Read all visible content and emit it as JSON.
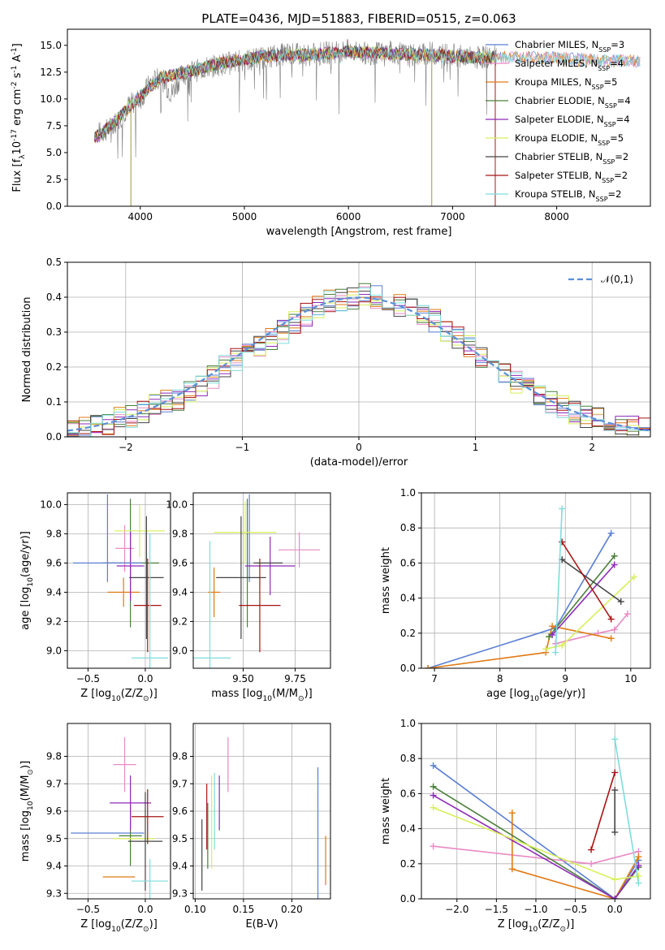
{
  "colors": {
    "Chabrier MILES": "#5b7fd4",
    "Salpeter MILES": "#e88ac4",
    "Kroupa MILES": "#e07b16",
    "Chabrier ELODIE": "#4a7f3a",
    "Salpeter ELODIE": "#8e2ab8",
    "Kroupa ELODIE": "#d8ef5a",
    "Chabrier STELIB": "#444444",
    "Salpeter STELIB": "#a81414",
    "Kroupa STELIB": "#7fdcdc",
    "normal_curve": "#5b8fd8",
    "spectrum": "#808080"
  },
  "chart_data": [
    {
      "type": "line",
      "title": "PLATE=0436, MJD=51883, FIBERID=0515, z=0.063",
      "xlabel": "wavelength [Angstrom, rest frame]",
      "ylabel": "Flux [f$_\\lambda$10$^{-17}$ erg cm$^{-2}$ s$^{-1}$ A$^{-1}$]",
      "xlim": [
        3300,
        8900
      ],
      "ylim": [
        0,
        16.5
      ],
      "xticks": [
        "4000",
        "5000",
        "6000",
        "7000",
        "8000"
      ],
      "yticks": [
        "0.0",
        "2.5",
        "5.0",
        "7.5",
        "10.0",
        "12.5",
        "15.0"
      ],
      "grid": false,
      "legend_position": "right",
      "series": [
        {
          "name": "Chabrier MILES, N$_{SSP}$=3"
        },
        {
          "name": "Salpeter MILES, N$_{SSP}$=4"
        },
        {
          "name": "Kroupa MILES, N$_{SSP}$=5"
        },
        {
          "name": "Chabrier ELODIE, N$_{SSP}$=4"
        },
        {
          "name": "Salpeter ELODIE, N$_{SSP}$=4"
        },
        {
          "name": "Kroupa ELODIE, N$_{SSP}$=5"
        },
        {
          "name": "Chabrier STELIB, N$_{SSP}$=2"
        },
        {
          "name": "Salpeter STELIB, N$_{SSP}$=2"
        },
        {
          "name": "Kroupa STELIB, N$_{SSP}$=2"
        }
      ],
      "spectrum_x": [
        3600,
        3700,
        3800,
        3900,
        4000,
        4100,
        4200,
        4300,
        4400,
        4600,
        4800,
        5000,
        5200,
        5400,
        5600,
        5800,
        6000,
        6200,
        6400,
        6600,
        6800,
        7000,
        7200,
        7400
      ],
      "spectrum_y": [
        6.8,
        7.2,
        8.2,
        9.5,
        10.0,
        11.5,
        12.0,
        10.5,
        12.3,
        12.8,
        13.3,
        13.6,
        13.9,
        14.2,
        14.1,
        14.3,
        14.5,
        14.2,
        14.4,
        14.0,
        14.3,
        14.1,
        13.8,
        14.0
      ],
      "model_x": [
        3600,
        3800,
        4000,
        4200,
        4400,
        4800,
        5200,
        5600,
        6000,
        6400,
        6800,
        7200,
        7600,
        8000,
        8400,
        8800
      ],
      "model_y": [
        6.5,
        8.3,
        10.3,
        12.0,
        12.4,
        13.4,
        14.0,
        14.1,
        14.4,
        14.2,
        14.1,
        13.9,
        13.9,
        13.8,
        13.6,
        13.5
      ]
    },
    {
      "type": "line",
      "xlabel": "(data-model)/error",
      "ylabel": "Normed distribution",
      "xlim": [
        -2.5,
        2.5
      ],
      "ylim": [
        0,
        0.5
      ],
      "xticks": [
        "−2",
        "−1",
        "0",
        "1",
        "2"
      ],
      "yticks": [
        "0.0",
        "0.1",
        "0.2",
        "0.3",
        "0.4",
        "0.5"
      ],
      "grid": true,
      "legend_position": "top-right",
      "legend_label": "$\\mathcal{N}(0,1)$",
      "bin_width": 0.1,
      "bin_start": -2.5,
      "histogram": [
        0.02,
        0.03,
        0.03,
        0.04,
        0.05,
        0.06,
        0.07,
        0.09,
        0.1,
        0.11,
        0.13,
        0.15,
        0.17,
        0.2,
        0.22,
        0.24,
        0.26,
        0.28,
        0.3,
        0.33,
        0.35,
        0.37,
        0.39,
        0.39,
        0.4,
        0.41,
        0.4,
        0.39,
        0.38,
        0.37,
        0.35,
        0.33,
        0.3,
        0.28,
        0.26,
        0.23,
        0.21,
        0.19,
        0.16,
        0.14,
        0.12,
        0.1,
        0.09,
        0.07,
        0.06,
        0.05,
        0.04,
        0.03,
        0.03,
        0.02
      ]
    },
    {
      "type": "scatter",
      "xlabel": "Z [log$_{10}$($Z/Z_\\odot$)]",
      "ylabel": "age  [log$_{10}$($age/yr$)]",
      "xlim": [
        -0.68,
        0.22
      ],
      "ylim": [
        8.88,
        10.08
      ],
      "xticks": [
        "−0.5",
        "0.0"
      ],
      "yticks": [
        "9.0",
        "9.2",
        "9.4",
        "9.6",
        "9.8",
        "10.0"
      ],
      "grid": true,
      "points": [
        {
          "label": "Chabrier MILES",
          "x": -0.33,
          "y": 9.77,
          "xerr": 0.0,
          "yerr": 0.3
        },
        {
          "label": "Salpeter MILES",
          "x": -0.18,
          "y": 9.7,
          "xerr": 0.08,
          "yerr": 0.16
        },
        {
          "label": "Kroupa MILES",
          "x": -0.19,
          "y": 9.4,
          "xerr": 0.14,
          "yerr": 0.1
        },
        {
          "label": "Chabrier ELODIE",
          "x": -0.13,
          "y": 9.6,
          "xerr": 0.25,
          "yerr": 0.44
        },
        {
          "label": "Salpeter ELODIE",
          "x": -0.13,
          "y": 9.58,
          "xerr": 0.12,
          "yerr": 0.24
        },
        {
          "label": "Kroupa ELODIE",
          "x": -0.05,
          "y": 9.82,
          "xerr": 0.22,
          "yerr": 0.18
        },
        {
          "label": "Chabrier STELIB",
          "x": 0.01,
          "y": 9.5,
          "xerr": 0.15,
          "yerr": 0.42
        },
        {
          "label": "Salpeter STELIB",
          "x": 0.02,
          "y": 9.31,
          "xerr": 0.12,
          "yerr": 0.32
        },
        {
          "label": "Kroupa STELIB",
          "x": 0.04,
          "y": 8.95,
          "xerr": 0.16,
          "yerr": 0.85
        },
        {
          "label": "Chabrier MILES (2)",
          "x": -0.33,
          "y": 9.6,
          "xerr": 0.3,
          "yerr": 0.0
        }
      ]
    },
    {
      "type": "scatter",
      "xlabel": "mass [log$_{10}$($M/M_\\odot$)]",
      "ylabel": "",
      "xlim": [
        9.26,
        9.92
      ],
      "ylim": [
        8.88,
        10.08
      ],
      "xticks": [
        "9.50",
        "9.75"
      ],
      "yticks": [
        "9.0",
        "9.2",
        "9.4",
        "9.6",
        "9.8",
        "10.0"
      ],
      "grid": true,
      "points": [
        {
          "label": "Chabrier MILES",
          "x": 9.53,
          "y": 9.77,
          "xerr": 0.0,
          "yerr": 0.3
        },
        {
          "label": "Salpeter MILES",
          "x": 9.77,
          "y": 9.69,
          "xerr": 0.1,
          "yerr": 0.12
        },
        {
          "label": "Kroupa MILES",
          "x": 9.36,
          "y": 9.4,
          "xerr": 0.03,
          "yerr": 0.17
        },
        {
          "label": "Chabrier ELODIE",
          "x": 9.52,
          "y": 9.6,
          "xerr": 0.0,
          "yerr": 0.44
        },
        {
          "label": "Salpeter ELODIE",
          "x": 9.63,
          "y": 9.58,
          "xerr": 0.12,
          "yerr": 0.2
        },
        {
          "label": "Kroupa ELODIE",
          "x": 9.51,
          "y": 9.81,
          "xerr": 0.15,
          "yerr": 0.21
        },
        {
          "label": "Chabrier STELIB",
          "x": 9.49,
          "y": 9.5,
          "xerr": 0.12,
          "yerr": 0.42
        },
        {
          "label": "Salpeter STELIB",
          "x": 9.58,
          "y": 9.31,
          "xerr": 0.1,
          "yerr": 0.32
        },
        {
          "label": "Kroupa STELIB",
          "x": 9.34,
          "y": 8.95,
          "xerr": 0.1,
          "yerr": 0.8
        },
        {
          "label": "Chabrier STELIB (2)",
          "x": 9.62,
          "y": 9.6,
          "xerr": 0.07,
          "yerr": 0.0
        }
      ]
    },
    {
      "type": "line",
      "xlabel": "age  [log$_{10}$($age/yr$)]",
      "ylabel": "mass weight",
      "xlim": [
        6.8,
        10.3
      ],
      "ylim": [
        0,
        1.0
      ],
      "xticks": [
        "7",
        "8",
        "9",
        "10"
      ],
      "yticks": [
        "0.0",
        "0.2",
        "0.4",
        "0.6",
        "0.8",
        "1.0"
      ],
      "grid": true,
      "series": [
        {
          "label": "Chabrier MILES",
          "x": [
            6.9,
            8.85,
            9.7
          ],
          "y": [
            0.0,
            0.23,
            0.77
          ]
        },
        {
          "label": "Salpeter MILES",
          "x": [
            8.85,
            9.5,
            9.75,
            9.95
          ],
          "y": [
            0.14,
            0.2,
            0.22,
            0.31
          ]
        },
        {
          "label": "Kroupa MILES",
          "x": [
            6.9,
            8.7,
            8.8,
            9.7
          ],
          "y": [
            0.0,
            0.09,
            0.24,
            0.17
          ]
        },
        {
          "label": "Chabrier ELODIE",
          "x": [
            8.75,
            9.75
          ],
          "y": [
            0.18,
            0.64
          ]
        },
        {
          "label": "Salpeter ELODIE",
          "x": [
            8.8,
            9.75
          ],
          "y": [
            0.19,
            0.59
          ]
        },
        {
          "label": "Kroupa ELODIE",
          "x": [
            8.7,
            8.95,
            10.05
          ],
          "y": [
            0.11,
            0.13,
            0.52
          ]
        },
        {
          "label": "Chabrier STELIB",
          "x": [
            8.95,
            9.85
          ],
          "y": [
            0.62,
            0.38
          ]
        },
        {
          "label": "Salpeter STELIB",
          "x": [
            8.95,
            9.7
          ],
          "y": [
            0.72,
            0.28
          ]
        },
        {
          "label": "Kroupa STELIB",
          "x": [
            8.85,
            8.95
          ],
          "y": [
            0.09,
            0.91
          ]
        }
      ]
    },
    {
      "type": "scatter",
      "xlabel": "Z [log$_{10}$($Z/Z_\\odot$)]",
      "ylabel": "mass [log$_{10}$($M/M_\\odot$)]",
      "xlim": [
        -0.68,
        0.22
      ],
      "ylim": [
        9.28,
        9.92
      ],
      "xticks": [
        "−0.5",
        "0.0"
      ],
      "yticks": [
        "9.3",
        "9.4",
        "9.5",
        "9.6",
        "9.7",
        "9.8"
      ],
      "grid": true,
      "points": [
        {
          "label": "Chabrier MILES",
          "x": -0.33,
          "y": 9.52,
          "xerr": 0.32,
          "yerr": 0.0
        },
        {
          "label": "Salpeter MILES",
          "x": -0.18,
          "y": 9.77,
          "xerr": 0.1,
          "yerr": 0.1
        },
        {
          "label": "Kroupa MILES",
          "x": -0.23,
          "y": 9.36,
          "xerr": 0.14,
          "yerr": 0.0
        },
        {
          "label": "Chabrier ELODIE",
          "x": -0.13,
          "y": 9.51,
          "xerr": 0.1,
          "yerr": 0.11
        },
        {
          "label": "Salpeter ELODIE",
          "x": -0.13,
          "y": 9.63,
          "xerr": 0.18,
          "yerr": 0.1
        },
        {
          "label": "Kroupa ELODIE",
          "x": -0.1,
          "y": 9.5,
          "xerr": 0.18,
          "yerr": 0.0
        },
        {
          "label": "Chabrier STELIB",
          "x": 0.0,
          "y": 9.49,
          "xerr": 0.15,
          "yerr": 0.18
        },
        {
          "label": "Salpeter STELIB",
          "x": 0.02,
          "y": 9.58,
          "xerr": 0.14,
          "yerr": 0.1
        },
        {
          "label": "Kroupa STELIB",
          "x": 0.04,
          "y": 9.345,
          "xerr": 0.16,
          "yerr": 0.08
        }
      ]
    },
    {
      "type": "scatter",
      "xlabel": "E(B-V)",
      "ylabel": "",
      "xlim": [
        0.098,
        0.24
      ],
      "ylim": [
        9.28,
        9.92
      ],
      "xticks": [
        "0.10",
        "0.15",
        "0.20"
      ],
      "yticks": [
        "9.3",
        "9.4",
        "9.5",
        "9.6",
        "9.7",
        "9.8"
      ],
      "grid": true,
      "points": [
        {
          "label": "Chabrier MILES",
          "x": 0.227,
          "y": 9.52,
          "xerr": 0.0,
          "yerr": 0.24
        },
        {
          "label": "Salpeter MILES",
          "x": 0.134,
          "y": 9.77,
          "xerr": 0.0,
          "yerr": 0.1
        },
        {
          "label": "Kroupa MILES",
          "x": 0.235,
          "y": 9.42,
          "xerr": 0.0,
          "yerr": 0.09
        },
        {
          "label": "Chabrier ELODIE",
          "x": 0.113,
          "y": 9.51,
          "xerr": 0.0,
          "yerr": 0.12
        },
        {
          "label": "Salpeter ELODIE",
          "x": 0.125,
          "y": 9.63,
          "xerr": 0.0,
          "yerr": 0.1
        },
        {
          "label": "Kroupa ELODIE",
          "x": 0.117,
          "y": 9.56,
          "xerr": 0.0,
          "yerr": 0.17
        },
        {
          "label": "Chabrier STELIB",
          "x": 0.107,
          "y": 9.44,
          "xerr": 0.0,
          "yerr": 0.13
        },
        {
          "label": "Salpeter STELIB",
          "x": 0.112,
          "y": 9.58,
          "xerr": 0.0,
          "yerr": 0.12
        },
        {
          "label": "Kroupa STELIB",
          "x": 0.12,
          "y": 9.6,
          "xerr": 0.0,
          "yerr": 0.14
        }
      ]
    },
    {
      "type": "line",
      "xlabel": "Z [log$_{10}$($Z/Z_\\odot$)]",
      "ylabel": "mass weight",
      "xlim": [
        -2.45,
        0.45
      ],
      "ylim": [
        0,
        1.0
      ],
      "xticks": [
        "−2.0",
        "−1.5",
        "−1.0",
        "−0.5",
        "0.0"
      ],
      "yticks": [
        "0.0",
        "0.2",
        "0.4",
        "0.6",
        "0.8",
        "1.0"
      ],
      "grid": true,
      "series": [
        {
          "label": "Chabrier MILES",
          "x": [
            -2.3,
            0.0,
            0.3
          ],
          "y": [
            0.76,
            0.0,
            0.22
          ]
        },
        {
          "label": "Salpeter MILES",
          "x": [
            -2.3,
            -0.3,
            0.3
          ],
          "y": [
            0.3,
            0.2,
            0.27
          ]
        },
        {
          "label": "Kroupa MILES",
          "x": [
            -1.3,
            -1.3,
            0.0,
            0.3
          ],
          "y": [
            0.49,
            0.17,
            0.0,
            0.24
          ]
        },
        {
          "label": "Chabrier ELODIE",
          "x": [
            -2.3,
            0.0,
            0.3
          ],
          "y": [
            0.64,
            0.0,
            0.18
          ]
        },
        {
          "label": "Salpeter ELODIE",
          "x": [
            -2.3,
            0.0,
            0.3
          ],
          "y": [
            0.59,
            0.0,
            0.19
          ]
        },
        {
          "label": "Kroupa ELODIE",
          "x": [
            -2.3,
            0.0,
            0.3
          ],
          "y": [
            0.52,
            0.11,
            0.13
          ]
        },
        {
          "label": "Chabrier STELIB",
          "x": [
            0.0,
            0.0
          ],
          "y": [
            0.62,
            0.38
          ]
        },
        {
          "label": "Salpeter STELIB",
          "x": [
            -0.3,
            0.0
          ],
          "y": [
            0.28,
            0.72
          ]
        },
        {
          "label": "Kroupa STELIB",
          "x": [
            0.0,
            0.3
          ],
          "y": [
            0.91,
            0.09
          ]
        }
      ]
    }
  ]
}
